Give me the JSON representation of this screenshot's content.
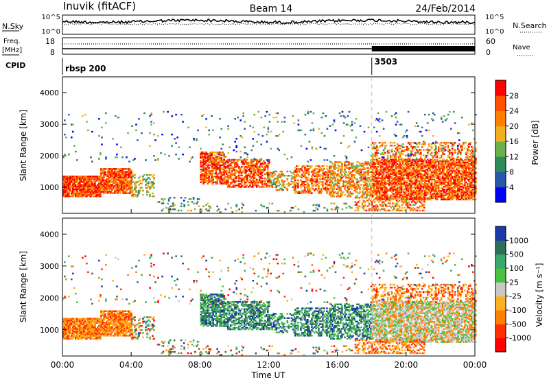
{
  "header": {
    "station": "Inuvik (fitACF)",
    "beam": "Beam 14",
    "date": "24/Feb/2014"
  },
  "summary_panel": {
    "nsky_label": "N.Sky",
    "nsearch_label": "N.Search",
    "nsky_ticks": [
      "10^5",
      "10^0"
    ],
    "nsearch_ticks": [
      "10^5",
      "10^0"
    ],
    "freq_label_line1": "Freq.",
    "freq_label_line2": "[MHz]",
    "freq_ticks": [
      "18",
      "8"
    ],
    "nave_label": "Nave",
    "nave_ticks": [
      "60",
      "0"
    ],
    "cpid_label": "CPID",
    "cpid_segments": [
      {
        "name": "rbsp 200",
        "start_hour": 0,
        "end_hour": 18
      },
      {
        "name": "3503",
        "start_hour": 18,
        "end_hour": 24
      }
    ]
  },
  "chart_data": [
    {
      "type": "heatmap",
      "name": "power",
      "ylabel": "Slant Range [km]",
      "xlabel": "",
      "xlim": [
        0,
        24
      ],
      "ylim": [
        180,
        4500
      ],
      "yticks": [
        1000,
        2000,
        3000,
        4000
      ],
      "colorbar": {
        "label": "Power [dB]",
        "ticks": [
          "4",
          "8",
          "12",
          "16",
          "20",
          "24",
          "28"
        ],
        "range": [
          0,
          30
        ]
      }
    },
    {
      "type": "heatmap",
      "name": "velocity",
      "ylabel": "Slant Range [km]",
      "xlabel": "Time UT",
      "xlim": [
        0,
        24
      ],
      "ylim": [
        180,
        4500
      ],
      "yticks": [
        1000,
        2000,
        3000,
        4000
      ],
      "xticks": [
        "00:00",
        "04:00",
        "08:00",
        "12:00",
        "16:00",
        "20:00",
        "00:00"
      ],
      "colorbar": {
        "label": "Velocity [m s⁻¹]",
        "ticks": [
          "1000",
          "500",
          "100",
          "25",
          "-25",
          "-100",
          "-500",
          "-1000"
        ]
      }
    }
  ],
  "colors": {
    "power_scale": [
      "#0000ff",
      "#2856a8",
      "#2e8a5a",
      "#6ab04c",
      "#f0b020",
      "#ff8000",
      "#ff5000",
      "#ff0000"
    ],
    "velocity_scale": [
      "#1c3aa8",
      "#2f6f5a",
      "#3aa86a",
      "#48c040",
      "#c8c8c8",
      "#ffb020",
      "#ff8000",
      "#ff3000",
      "#ff0000"
    ]
  }
}
